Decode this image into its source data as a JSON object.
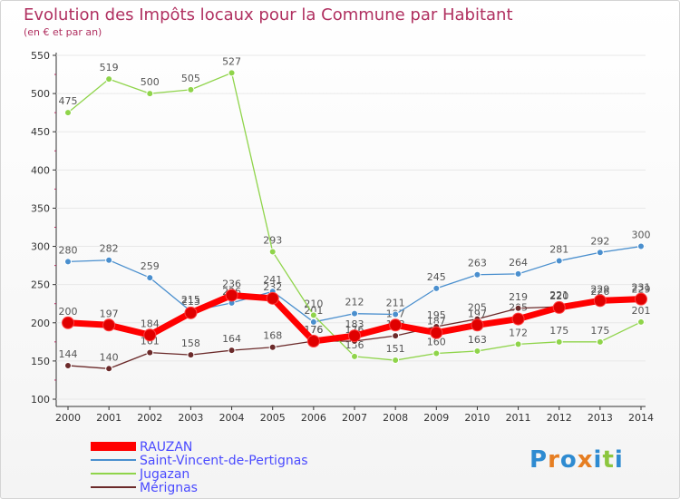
{
  "chart_data": {
    "type": "line",
    "title": "Evolution des Impôts locaux pour la Commune par Habitant",
    "subtitle": "(en € et par an)",
    "x": [
      "2000",
      "2001",
      "2002",
      "2003",
      "2004",
      "2005",
      "2006",
      "2007",
      "2008",
      "2009",
      "2010",
      "2011",
      "2012",
      "2013",
      "2014"
    ],
    "ylim": [
      100,
      550
    ],
    "yticks": [
      100,
      150,
      200,
      250,
      300,
      350,
      400,
      450,
      500,
      550
    ],
    "series": [
      {
        "name": "Mérignas",
        "color": "#6b2a2a",
        "values": [
          144,
          140,
          161,
          158,
          164,
          168,
          176,
          176,
          183,
          195,
          205,
          219,
          221,
          226,
          229
        ],
        "labels": [
          "144",
          "140",
          "161",
          "158",
          "164",
          "168",
          "176",
          "176",
          "183",
          "195",
          "205",
          "219",
          "221",
          "226",
          "229"
        ]
      },
      {
        "name": "Saint-Vincent-de-Pertignas",
        "color": "#4a8fce",
        "values": [
          280,
          282,
          259,
          215,
          226,
          241,
          201,
          212,
          211,
          245,
          263,
          264,
          281,
          292,
          300
        ],
        "labels": [
          "280",
          "282",
          "259",
          "215",
          "226",
          "241",
          "201",
          "212",
          "211",
          "245",
          "263",
          "264",
          "281",
          "292",
          "300"
        ]
      },
      {
        "name": "Jugazan",
        "color": "#8fd44a",
        "values": [
          475,
          519,
          500,
          505,
          527,
          293,
          210,
          156,
          151,
          160,
          163,
          172,
          175,
          175,
          201
        ],
        "labels": [
          "475",
          "519",
          "500",
          "505",
          "527",
          "293",
          "210",
          "156",
          "151",
          "160",
          "163",
          "172",
          "175",
          "175",
          "201"
        ]
      },
      {
        "name": "RAUZAN",
        "color": "#ff0000",
        "values": [
          200,
          197,
          184,
          213,
          236,
          232,
          176,
          183,
          197,
          187,
          197,
          205,
          220,
          229,
          231
        ],
        "labels": [
          "200",
          "197",
          "184",
          "213",
          "236",
          "232",
          "176",
          "183",
          "197",
          "187",
          "197",
          "205",
          "220",
          "229",
          "231"
        ]
      }
    ],
    "legend": [
      "RAUZAN",
      "Saint-Vincent-de-Pertignas",
      "Jugazan",
      "Mérignas"
    ],
    "legend_position": "bottom-left"
  },
  "logo": {
    "text": "Proxiti"
  }
}
